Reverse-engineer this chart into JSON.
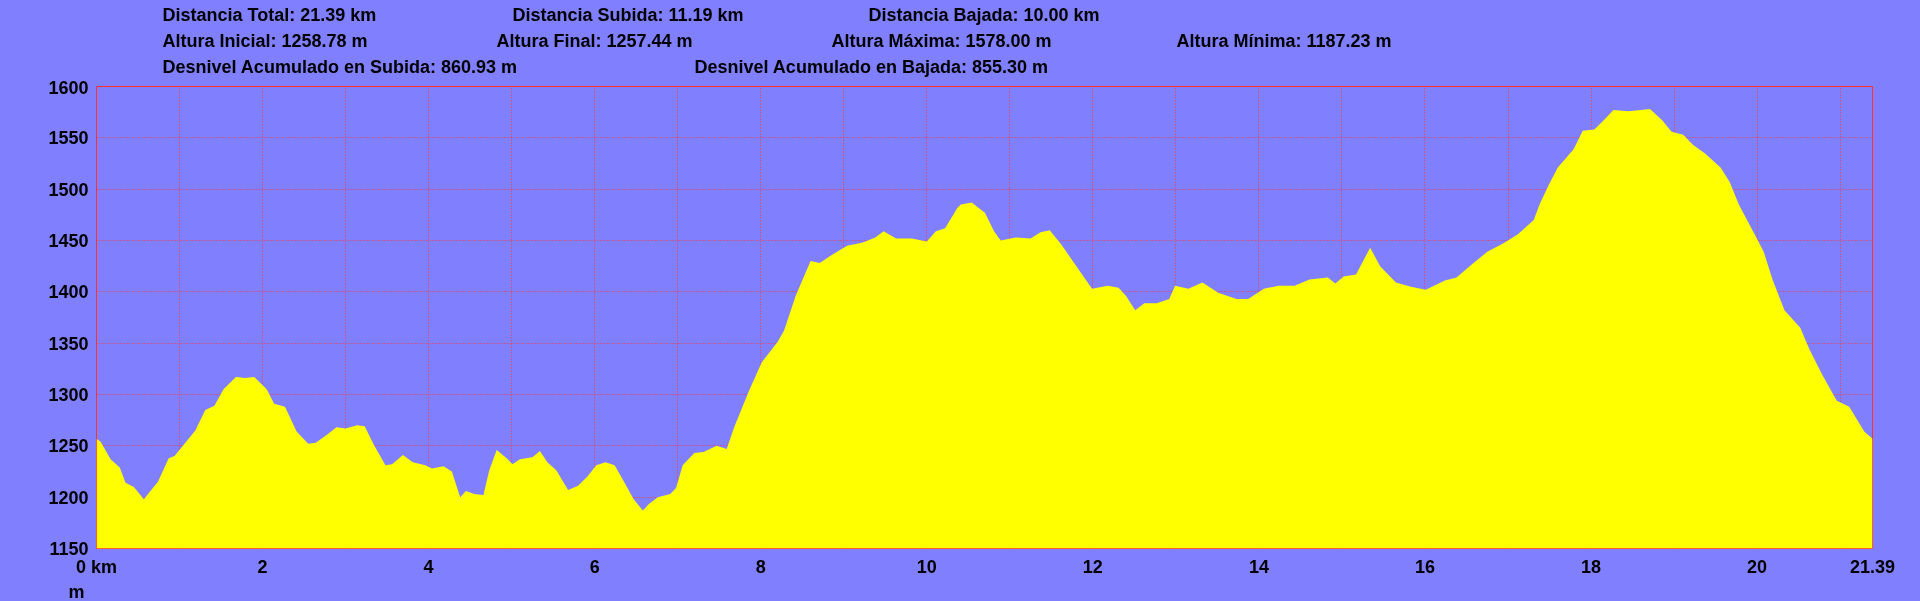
{
  "chart_data": {
    "type": "area",
    "annotations": [
      "Distancia Total: 21.39 km",
      "Distancia Subida: 11.19 km",
      "Distancia Bajada: 10.00 km",
      "Altura Inicial: 1258.78 m",
      "Altura Final: 1257.44 m",
      "Altura Máxima: 1578.00 m",
      "Altura Mínima: 1187.23 m",
      "Desnivel Acumulado en Subida: 860.93 m",
      "Desnivel Acumulado en Bajada: 855.30 m"
    ],
    "ylabel": "m",
    "x": [
      0,
      0.05,
      0.17,
      0.28,
      0.35,
      0.45,
      0.57,
      0.65,
      0.74,
      0.87,
      0.94,
      1.05,
      1.19,
      1.31,
      1.42,
      1.53,
      1.68,
      1.79,
      1.9,
      2.05,
      2.14,
      2.27,
      2.41,
      2.55,
      2.64,
      2.78,
      2.89,
      3.0,
      3.14,
      3.23,
      3.34,
      3.48,
      3.56,
      3.69,
      3.81,
      3.96,
      4.04,
      4.18,
      4.28,
      4.38,
      4.45,
      4.55,
      4.66,
      4.73,
      4.82,
      4.94,
      5.01,
      5.1,
      5.25,
      5.34,
      5.43,
      5.54,
      5.68,
      5.8,
      5.91,
      6.02,
      6.13,
      6.24,
      6.36,
      6.47,
      6.58,
      6.65,
      6.76,
      6.91,
      6.98,
      7.06,
      7.2,
      7.31,
      7.47,
      7.59,
      7.68,
      7.86,
      8.01,
      8.2,
      8.28,
      8.42,
      8.6,
      8.71,
      8.86,
      9.04,
      9.23,
      9.38,
      9.48,
      9.63,
      9.82,
      10.0,
      10.11,
      10.22,
      10.37,
      10.41,
      10.54,
      10.7,
      10.81,
      10.89,
      11.07,
      11.25,
      11.37,
      11.48,
      11.62,
      11.81,
      11.99,
      12.18,
      12.31,
      12.4,
      12.51,
      12.62,
      12.77,
      12.92,
      12.99,
      13.15,
      13.32,
      13.51,
      13.73,
      13.87,
      14.06,
      14.24,
      14.43,
      14.61,
      14.83,
      14.92,
      15.02,
      15.17,
      15.34,
      15.46,
      15.65,
      15.83,
      16.01,
      16.24,
      16.38,
      16.57,
      16.75,
      16.94,
      17.12,
      17.31,
      17.38,
      17.49,
      17.6,
      17.79,
      17.9,
      18.04,
      18.15,
      18.27,
      18.45,
      18.6,
      18.71,
      18.86,
      18.97,
      19.11,
      19.23,
      19.37,
      19.56,
      19.67,
      19.78,
      19.97,
      20.08,
      20.19,
      20.33,
      20.52,
      20.63,
      20.78,
      20.96,
      21.11,
      21.29,
      21.39
    ],
    "series": [
      {
        "color": "#ffff00",
        "values": [
          1257,
          1254,
          1237,
          1229,
          1214,
          1210,
          1198,
          1206,
          1215,
          1238,
          1240,
          1251,
          1265,
          1285,
          1289,
          1305,
          1317,
          1316,
          1317,
          1305,
          1291,
          1288,
          1264,
          1252,
          1253,
          1261,
          1268,
          1267,
          1270,
          1269,
          1251,
          1231,
          1232,
          1241,
          1234,
          1231,
          1228,
          1230,
          1225,
          1200,
          1206,
          1203,
          1202,
          1226,
          1246,
          1238,
          1232,
          1237,
          1239,
          1245,
          1234,
          1226,
          1207,
          1211,
          1220,
          1231,
          1234,
          1231,
          1214,
          1198,
          1187,
          1193,
          1200,
          1203,
          1209,
          1231,
          1243,
          1244,
          1250,
          1247,
          1268,
          1304,
          1331,
          1351,
          1362,
          1396,
          1430,
          1428,
          1436,
          1445,
          1448,
          1453,
          1459,
          1452,
          1452,
          1449,
          1459,
          1462,
          1482,
          1485,
          1487,
          1477,
          1459,
          1450,
          1453,
          1452,
          1458,
          1460,
          1446,
          1424,
          1403,
          1406,
          1404,
          1396,
          1382,
          1389,
          1389,
          1393,
          1406,
          1403,
          1409,
          1399,
          1393,
          1393,
          1403,
          1406,
          1406,
          1412,
          1414,
          1408,
          1415,
          1417,
          1443,
          1425,
          1409,
          1405,
          1402,
          1411,
          1414,
          1427,
          1439,
          1447,
          1456,
          1470,
          1485,
          1504,
          1521,
          1539,
          1557,
          1558,
          1567,
          1577,
          1576,
          1577,
          1578,
          1567,
          1556,
          1553,
          1543,
          1535,
          1521,
          1507,
          1485,
          1456,
          1439,
          1411,
          1382,
          1365,
          1344,
          1320,
          1294,
          1288,
          1264,
          1257
        ]
      }
    ],
    "xlim": [
      0,
      21.39
    ],
    "ylim": [
      1150,
      1600
    ],
    "xticks": [
      {
        "value": 0,
        "label": "0 km"
      },
      {
        "value": 1,
        "label": null
      },
      2,
      {
        "value": 3,
        "label": null
      },
      4,
      {
        "value": 5,
        "label": null
      },
      6,
      {
        "value": 7,
        "label": null
      },
      8,
      {
        "value": 9,
        "label": null
      },
      10,
      {
        "value": 11,
        "label": null
      },
      12,
      {
        "value": 13,
        "label": null
      },
      14,
      {
        "value": 15,
        "label": null
      },
      16,
      {
        "value": 17,
        "label": null
      },
      18,
      {
        "value": 19,
        "label": null
      },
      20,
      {
        "value": 21,
        "label": null
      },
      21.39
    ],
    "yticks": [
      1150,
      1200,
      1250,
      1300,
      1350,
      1400,
      1450,
      1500,
      1550,
      1600
    ],
    "grid": true
  }
}
